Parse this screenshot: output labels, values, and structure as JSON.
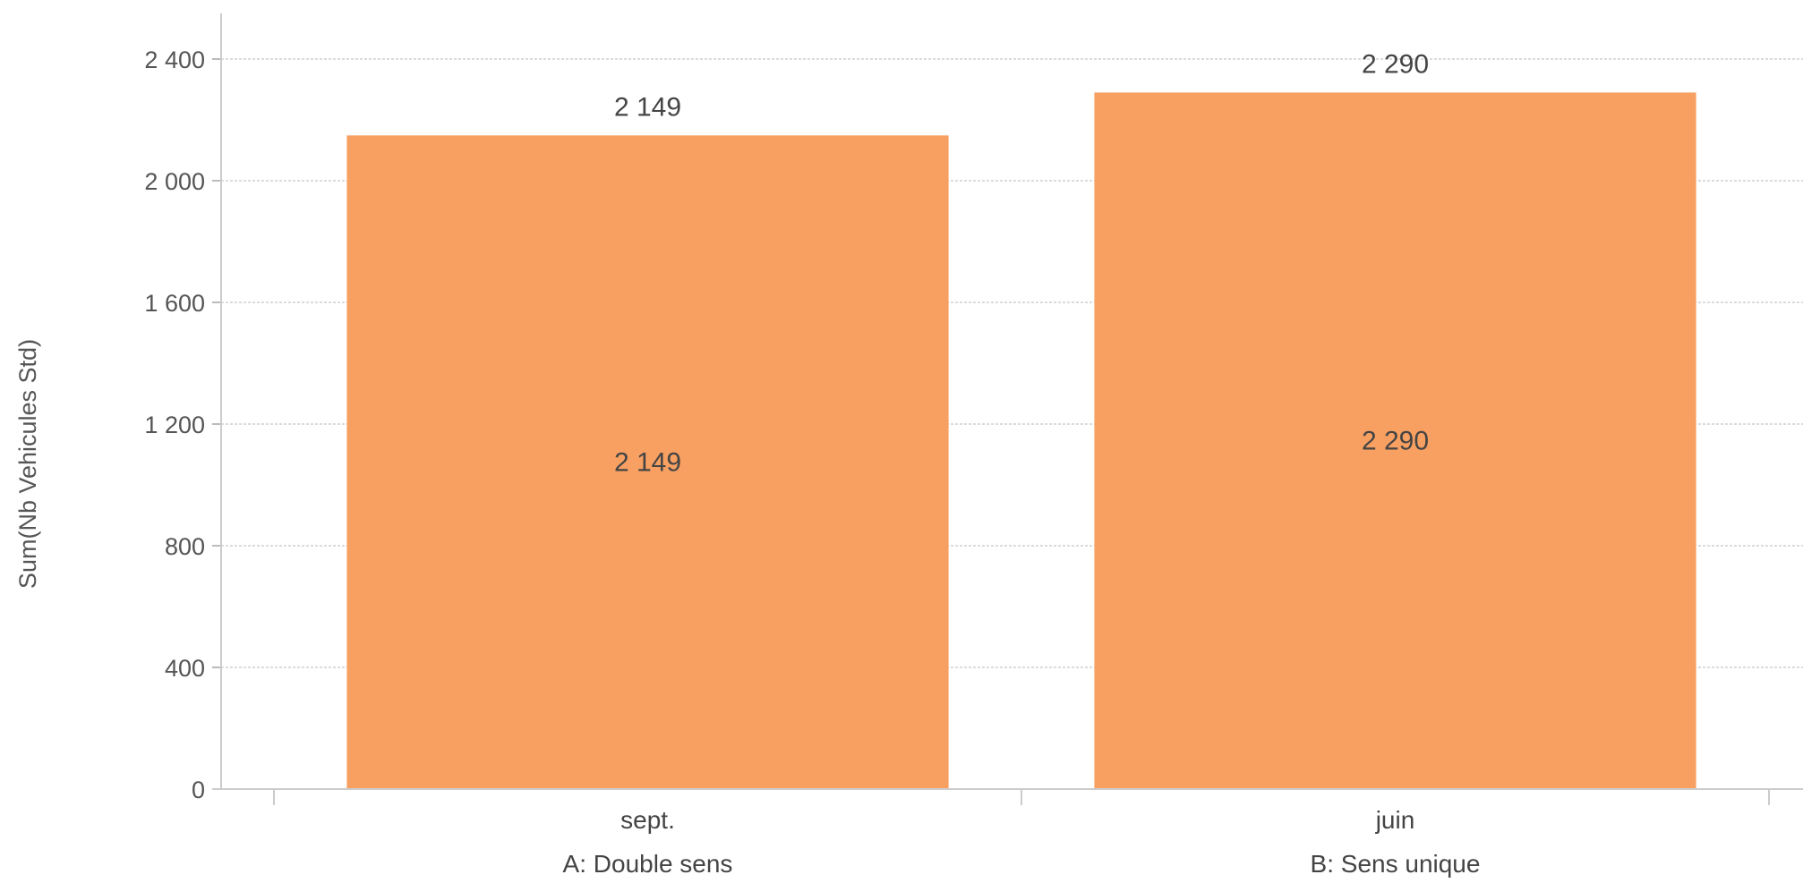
{
  "chart_data": {
    "type": "bar",
    "ylabel": "Sum(Nb Vehicules Std)",
    "ylim": [
      0,
      2550
    ],
    "yticks": [
      0,
      400,
      800,
      1200,
      1600,
      2000,
      2400
    ],
    "ytick_labels": [
      "0",
      "400",
      "800",
      "1 200",
      "1 600",
      "2 000",
      "2 400"
    ],
    "grid": true,
    "legend": "none",
    "bar_color": "#f8a062",
    "categories": [
      "sept.",
      "juin"
    ],
    "groups": [
      "A: Double sens",
      "B: Sens unique"
    ],
    "values": [
      2149,
      2290
    ],
    "value_labels": [
      "2 149",
      "2 290"
    ],
    "inside_labels": [
      "2 149",
      "2 290"
    ]
  }
}
